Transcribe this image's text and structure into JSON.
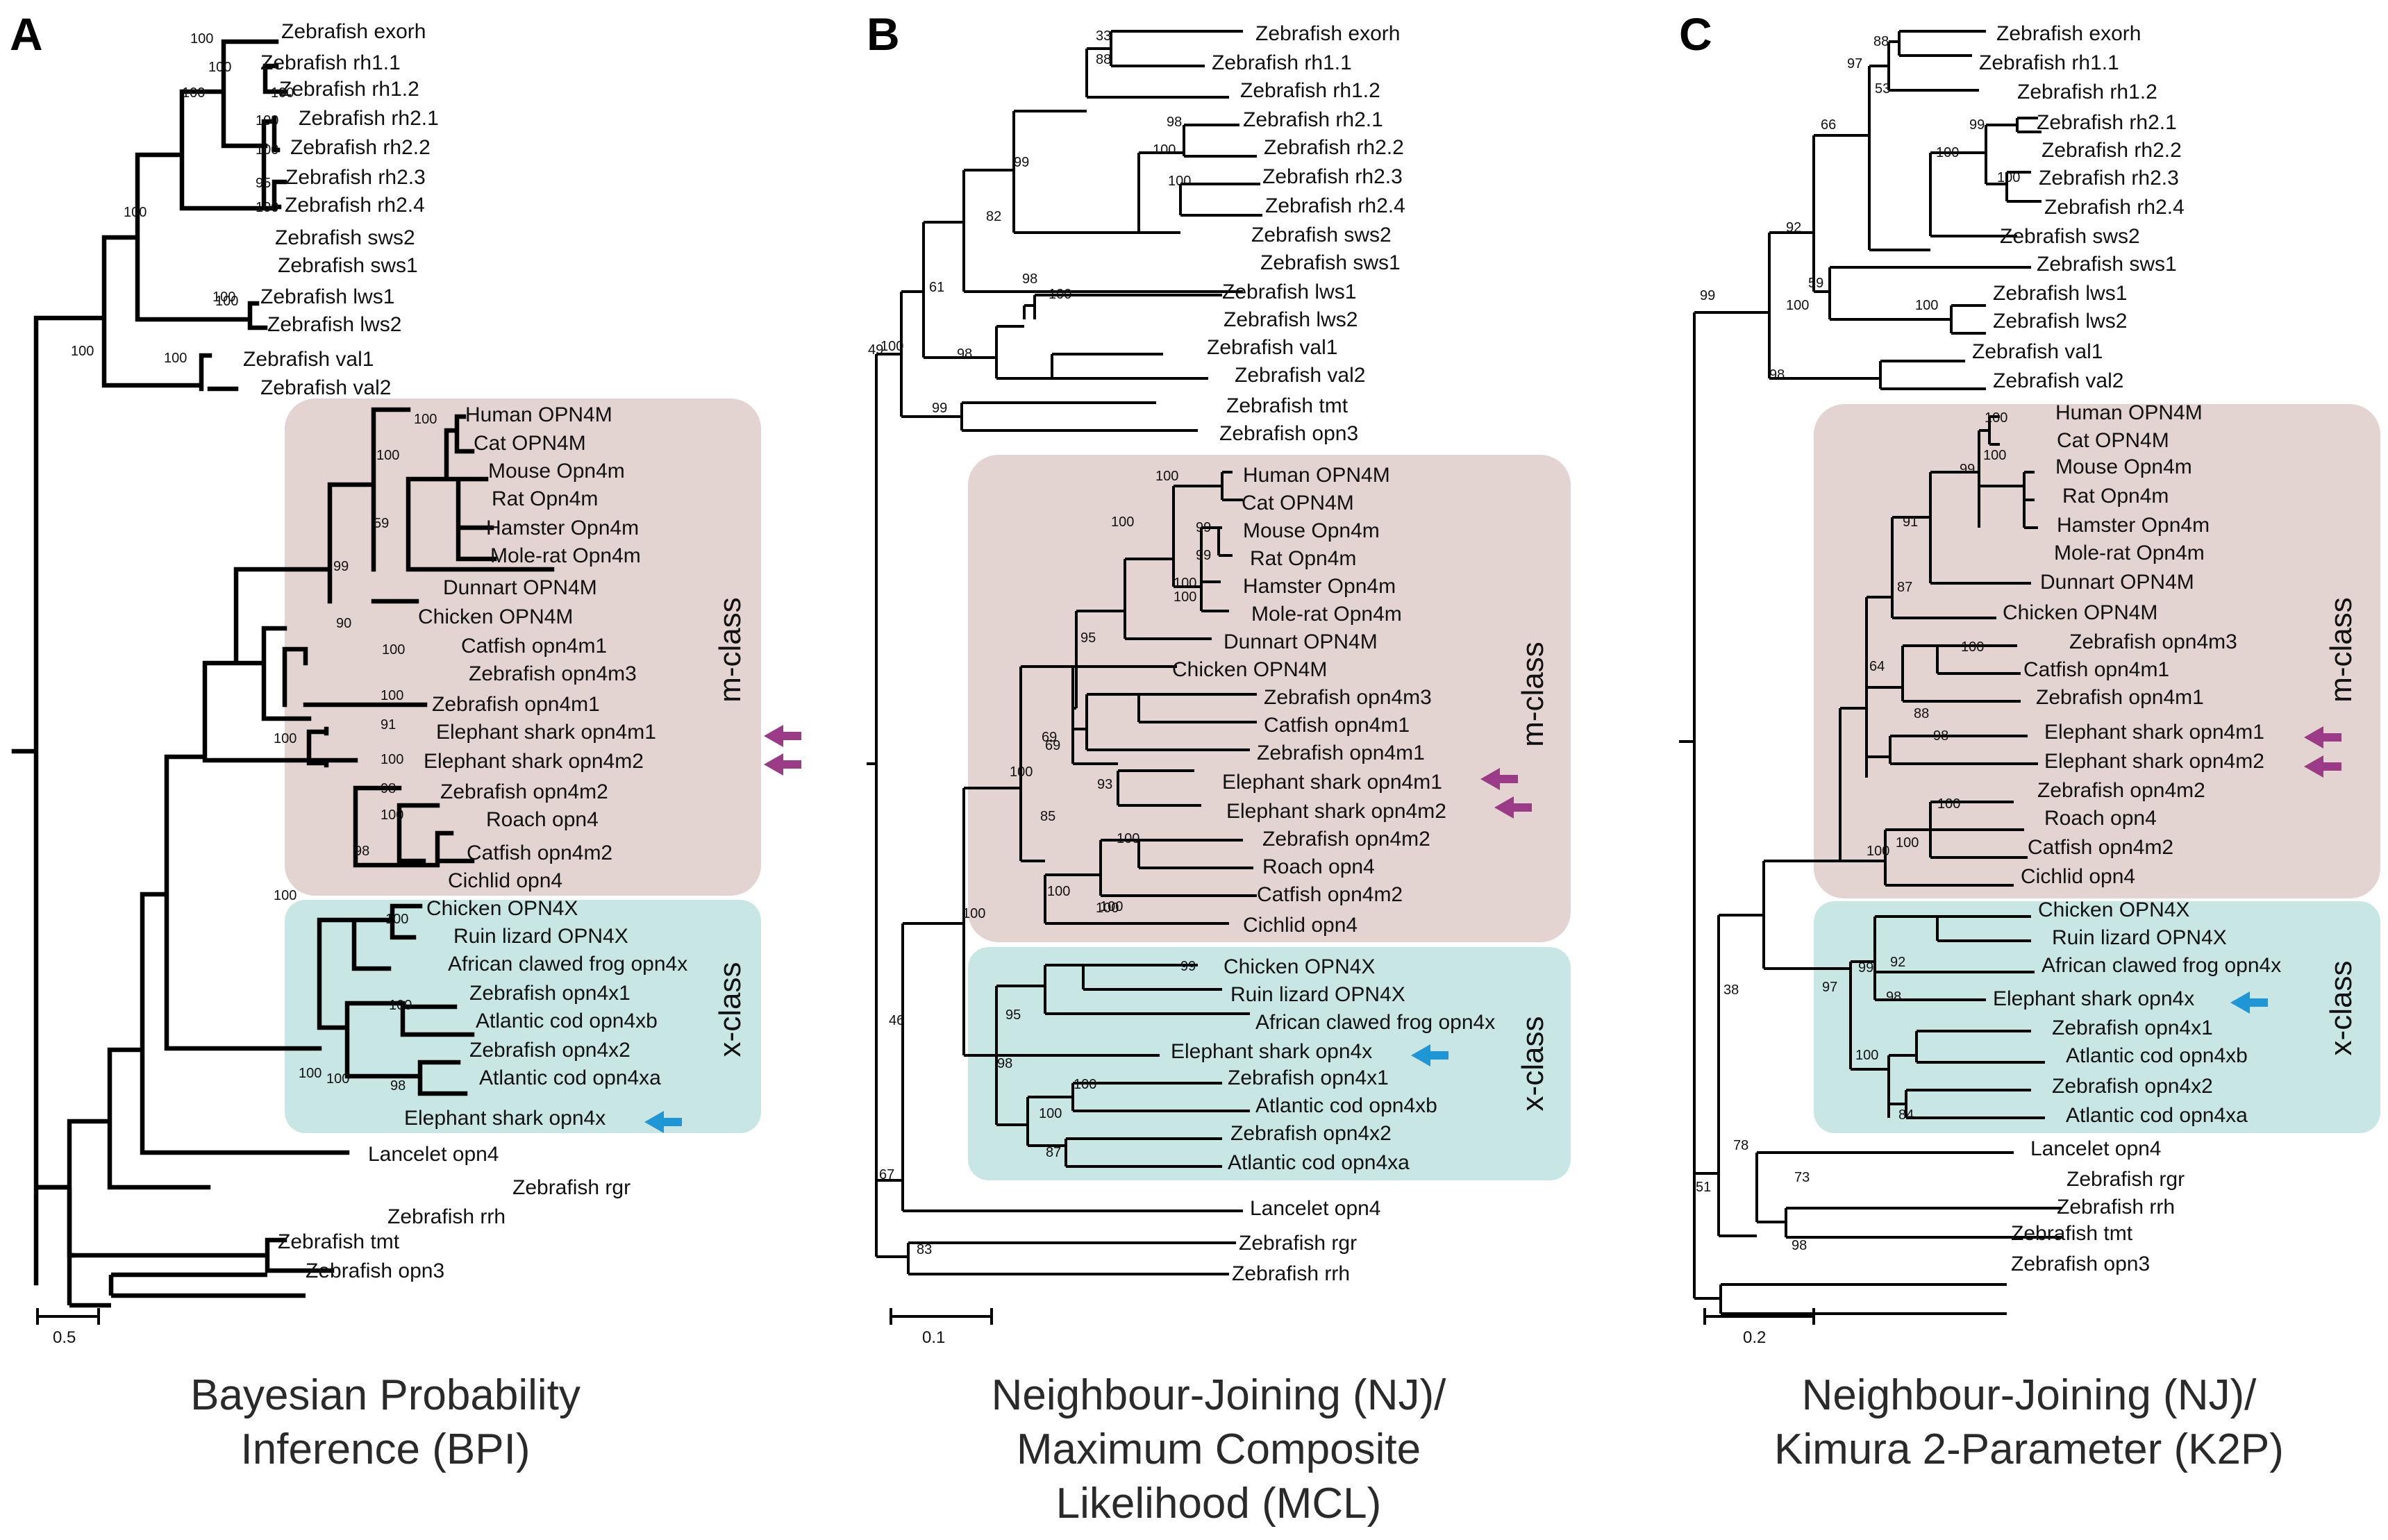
{
  "colors": {
    "mclass_bg": "#e3d3d1",
    "xclass_bg": "#c8e7e4",
    "shark_m": "#9b3a86",
    "shark_x": "#1f96d6",
    "line": "#000000"
  },
  "panels": [
    {
      "label": "A",
      "caption_lines": [
        "Bayesian Probability",
        "Inference (BPI)"
      ],
      "scale": "0.5",
      "class_m": "m-class",
      "class_x": "x-class",
      "leaves": [
        "Zebrafish exorh",
        "Zebrafish rh1.1",
        "Zebrafish rh1.2",
        "Zebrafish rh2.1",
        "Zebrafish rh2.2",
        "Zebrafish rh2.3",
        "Zebrafish rh2.4",
        "Zebrafish sws2",
        "Zebrafish sws1",
        "Zebrafish lws1",
        "Zebrafish lws2",
        "Zebrafish val1",
        "Zebrafish val2",
        "Human OPN4M",
        "Cat OPN4M",
        "Mouse Opn4m",
        "Rat Opn4m",
        "Hamster Opn4m",
        "Mole-rat Opn4m",
        "Dunnart OPN4M",
        "Chicken OPN4M",
        "Catfish opn4m1",
        "Zebrafish opn4m3",
        "Zebrafish opn4m1",
        "Elephant shark opn4m1",
        "Elephant shark opn4m2",
        "Zebrafish opn4m2",
        "Roach opn4",
        "Catfish opn4m2",
        "Cichlid opn4",
        "Chicken OPN4X",
        "Ruin lizard OPN4X",
        "African clawed frog opn4x",
        "Zebrafish opn4x1",
        "Atlantic cod opn4xb",
        "Zebrafish opn4x2",
        "Atlantic cod opn4xa",
        "Elephant shark opn4x",
        "Lancelet opn4",
        "Zebrafish rgr",
        "Zebrafish rrh",
        "Zebrafish tmt",
        "Zebrafish opn3"
      ],
      "bootstraps": [
        "100",
        "100",
        "100",
        "100",
        "100",
        "100",
        "95",
        "100",
        "100",
        "100",
        "100",
        "100",
        "100",
        "100",
        "100",
        "59",
        "99",
        "90",
        "100",
        "100",
        "91",
        "100",
        "100",
        "98",
        "100",
        "98",
        "100",
        "100",
        "100",
        "100",
        "98",
        "100"
      ]
    },
    {
      "label": "B",
      "caption_lines": [
        "Neighbour-Joining (NJ)/",
        "Maximum Composite",
        "Likelihood (MCL)"
      ],
      "scale": "0.1",
      "class_m": "m-class",
      "class_x": "x-class",
      "leaves": [
        "Zebrafish exorh",
        "Zebrafish rh1.1",
        "Zebrafish rh1.2",
        "Zebrafish rh2.1",
        "Zebrafish rh2.2",
        "Zebrafish rh2.3",
        "Zebrafish rh2.4",
        "Zebrafish sws2",
        "Zebrafish sws1",
        "Zebrafish lws1",
        "Zebrafish lws2",
        "Zebrafish val1",
        "Zebrafish val2",
        "Zebrafish tmt",
        "Zebrafish opn3",
        "Human OPN4M",
        "Cat OPN4M",
        "Mouse Opn4m",
        "Rat Opn4m",
        "Hamster Opn4m",
        "Mole-rat Opn4m",
        "Dunnart OPN4M",
        "Chicken OPN4M",
        "Zebrafish opn4m3",
        "Catfish opn4m1",
        "Zebrafish opn4m1",
        "Elephant shark opn4m1",
        "Elephant shark opn4m2",
        "Zebrafish opn4m2",
        "Roach opn4",
        "Catfish opn4m2",
        "Cichlid opn4",
        "Chicken OPN4X",
        "Ruin lizard OPN4X",
        "African clawed frog opn4x",
        "Elephant shark opn4x",
        "Zebrafish opn4x1",
        "Atlantic cod opn4xb",
        "Zebrafish opn4x2",
        "Atlantic cod opn4xa",
        "Lancelet opn4",
        "Zebrafish rgr",
        "Zebrafish rrh"
      ],
      "bootstraps": [
        "33",
        "88",
        "98",
        "100",
        "100",
        "99",
        "82",
        "98",
        "61",
        "100",
        "98",
        "100",
        "49",
        "99",
        "100",
        "100",
        "99",
        "99",
        "100",
        "100",
        "95",
        "69",
        "100",
        "69",
        "85",
        "93",
        "100",
        "100",
        "100",
        "100",
        "100",
        "99",
        "95",
        "98",
        "100",
        "100",
        "87",
        "46",
        "67",
        "83"
      ]
    },
    {
      "label": "C",
      "caption_lines": [
        "Neighbour-Joining (NJ)/",
        "Kimura 2-Parameter (K2P)"
      ],
      "scale": "0.2",
      "class_m": "m-class",
      "class_x": "x-class",
      "leaves": [
        "Zebrafish exorh",
        "Zebrafish rh1.1",
        "Zebrafish rh1.2",
        "Zebrafish rh2.1",
        "Zebrafish rh2.2",
        "Zebrafish rh2.3",
        "Zebrafish rh2.4",
        "Zebrafish sws2",
        "Zebrafish sws1",
        "Zebrafish lws1",
        "Zebrafish lws2",
        "Zebrafish val1",
        "Zebrafish val2",
        "Human OPN4M",
        "Cat OPN4M",
        "Mouse Opn4m",
        "Rat Opn4m",
        "Hamster Opn4m",
        "Mole-rat Opn4m",
        "Dunnart OPN4M",
        "Chicken OPN4M",
        "Zebrafish opn4m3",
        "Catfish opn4m1",
        "Zebrafish opn4m1",
        "Elephant shark opn4m1",
        "Elephant shark opn4m2",
        "Zebrafish opn4m2",
        "Roach opn4",
        "Catfish opn4m2",
        "Cichlid opn4",
        "Chicken OPN4X",
        "Ruin lizard OPN4X",
        "African clawed frog opn4x",
        "Elephant shark opn4x",
        "Zebrafish opn4x1",
        "Atlantic cod opn4xb",
        "Zebrafish opn4x2",
        "Atlantic cod opn4xa",
        "Lancelet opn4",
        "Zebrafish rgr",
        "Zebrafish rrh",
        "Zebrafish tmt",
        "Zebrafish opn3"
      ],
      "bootstraps": [
        "88",
        "53",
        "97",
        "99",
        "100",
        "100",
        "66",
        "92",
        "59",
        "100",
        "100",
        "98",
        "99",
        "100",
        "100",
        "99",
        "91",
        "87",
        "64",
        "100",
        "88",
        "98",
        "100",
        "100",
        "100",
        "99",
        "92",
        "98",
        "97",
        "100",
        "84",
        "38",
        "78",
        "73",
        "51",
        "98"
      ]
    }
  ]
}
